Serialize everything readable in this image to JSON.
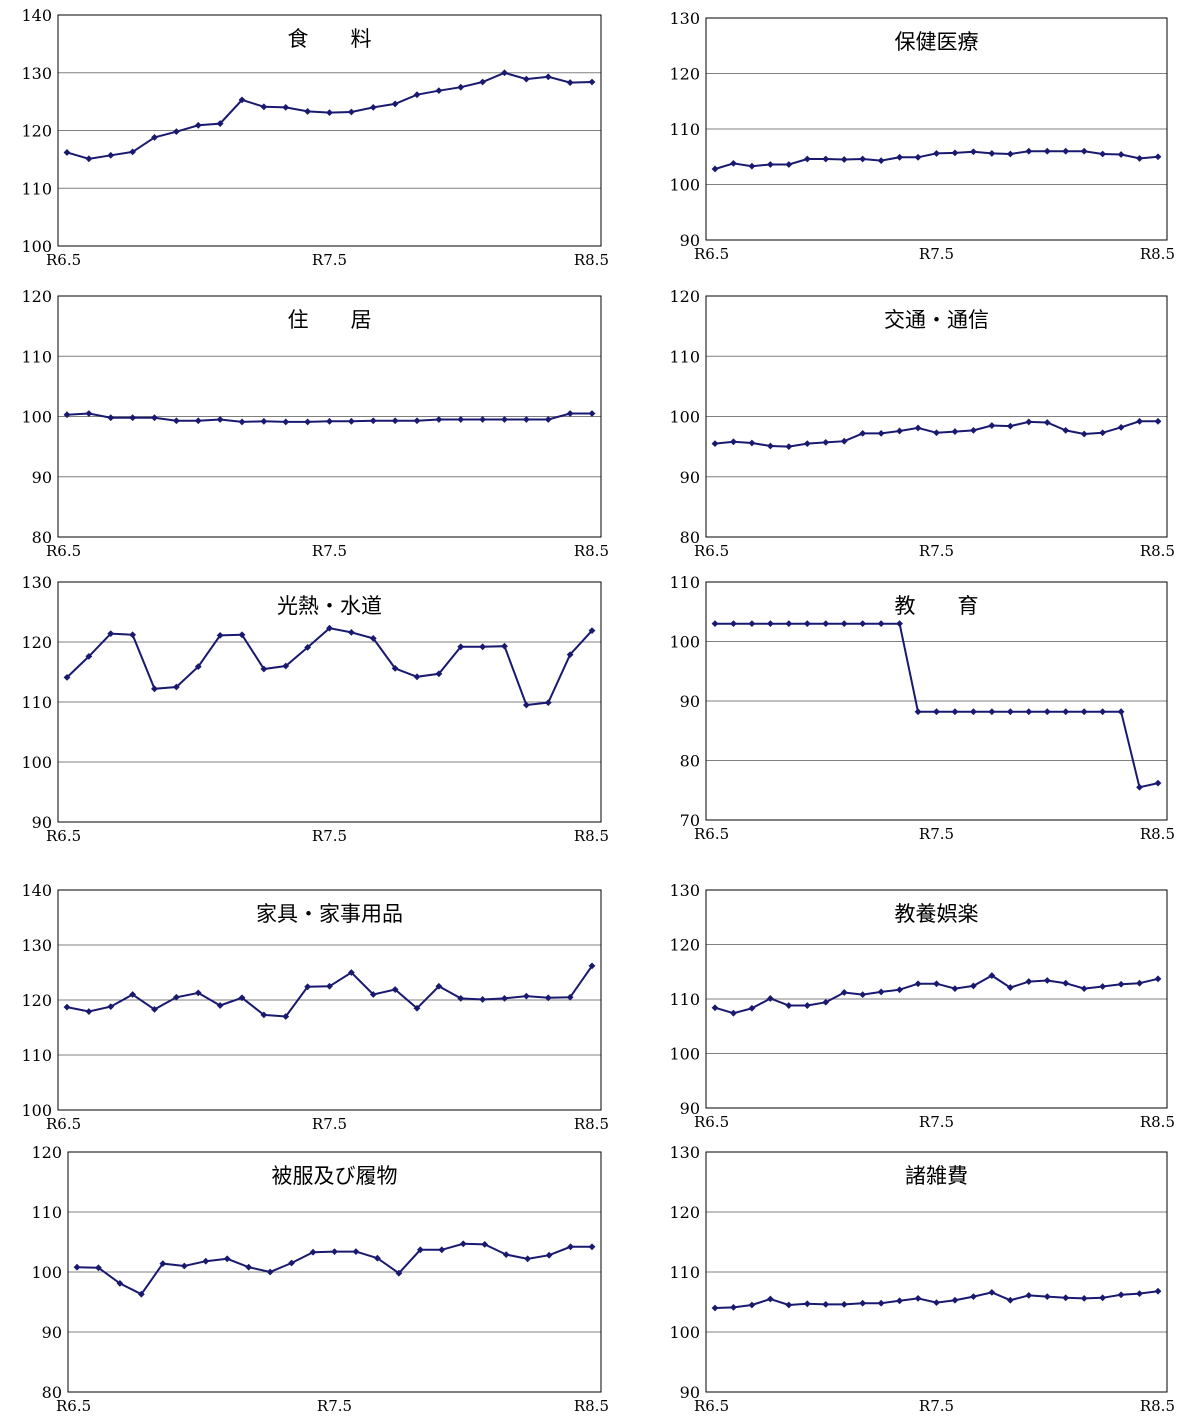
{
  "chart_data": [
    {
      "type": "line",
      "title": "食　　料",
      "ylim": [
        100,
        140
      ],
      "yticks": [
        100,
        110,
        120,
        130,
        140
      ],
      "x_labels": [
        "R6.5",
        "R7.5",
        "R8.5"
      ],
      "grid": true,
      "series": [
        {
          "values": [
            116.2,
            115.1,
            115.7,
            116.3,
            118.8,
            119.8,
            120.9,
            121.2,
            125.3,
            124.1,
            124.0,
            123.3,
            123.1,
            123.2,
            124.0,
            124.6,
            126.2,
            126.9,
            127.5,
            128.4,
            130.0,
            128.9,
            129.3,
            128.3,
            128.4
          ]
        }
      ]
    },
    {
      "type": "line",
      "title": "保健医療",
      "ylim": [
        90,
        130
      ],
      "yticks": [
        90,
        100,
        110,
        120,
        130
      ],
      "x_labels": [
        "R6.5",
        "R7.5",
        "R8.5"
      ],
      "grid": true,
      "series": [
        {
          "values": [
            102.8,
            103.8,
            103.3,
            103.6,
            103.6,
            104.6,
            104.6,
            104.5,
            104.6,
            104.3,
            104.9,
            104.9,
            105.6,
            105.7,
            105.9,
            105.6,
            105.5,
            106.0,
            106.0,
            106.0,
            106.0,
            105.5,
            105.4,
            104.7,
            105.0
          ]
        }
      ]
    },
    {
      "type": "line",
      "title": "住　　居",
      "ylim": [
        80,
        120
      ],
      "yticks": [
        80,
        90,
        100,
        110,
        120
      ],
      "x_labels": [
        "R6.5",
        "R7.5",
        "R8.5"
      ],
      "grid": true,
      "series": [
        {
          "values": [
            100.3,
            100.5,
            99.8,
            99.8,
            99.8,
            99.3,
            99.3,
            99.5,
            99.1,
            99.2,
            99.1,
            99.1,
            99.2,
            99.2,
            99.3,
            99.3,
            99.3,
            99.5,
            99.5,
            99.5,
            99.5,
            99.5,
            99.5,
            100.5,
            100.5
          ]
        }
      ]
    },
    {
      "type": "line",
      "title": "交通・通信",
      "ylim": [
        80,
        120
      ],
      "yticks": [
        80,
        90,
        100,
        110,
        120
      ],
      "x_labels": [
        "R6.5",
        "R7.5",
        "R8.5"
      ],
      "grid": true,
      "series": [
        {
          "values": [
            95.5,
            95.8,
            95.6,
            95.1,
            95.0,
            95.5,
            95.7,
            95.9,
            97.2,
            97.2,
            97.6,
            98.1,
            97.3,
            97.5,
            97.7,
            98.5,
            98.4,
            99.1,
            99.0,
            97.7,
            97.1,
            97.3,
            98.2,
            99.2,
            99.2
          ]
        }
      ]
    },
    {
      "type": "line",
      "title": "光熱・水道",
      "ylim": [
        90,
        130
      ],
      "yticks": [
        90,
        100,
        110,
        120,
        130
      ],
      "x_labels": [
        "R6.5",
        "R7.5",
        "R8.5"
      ],
      "grid": true,
      "series": [
        {
          "values": [
            114.1,
            117.6,
            121.4,
            121.2,
            112.2,
            112.5,
            115.9,
            121.1,
            121.2,
            115.5,
            116.0,
            119.1,
            122.3,
            121.6,
            120.6,
            115.6,
            114.2,
            114.7,
            119.2,
            119.2,
            119.3,
            109.5,
            109.9,
            117.9,
            121.9
          ]
        }
      ]
    },
    {
      "type": "line",
      "title": "教　　育",
      "ylim": [
        70,
        110
      ],
      "yticks": [
        70,
        80,
        90,
        100,
        110
      ],
      "x_labels": [
        "R6.5",
        "R7.5",
        "R8.5"
      ],
      "grid": true,
      "series": [
        {
          "values": [
            103.0,
            103.0,
            103.0,
            103.0,
            103.0,
            103.0,
            103.0,
            103.0,
            103.0,
            103.0,
            103.0,
            88.2,
            88.2,
            88.2,
            88.2,
            88.2,
            88.2,
            88.2,
            88.2,
            88.2,
            88.2,
            88.2,
            88.2,
            75.5,
            76.2
          ]
        }
      ]
    },
    {
      "type": "line",
      "title": "家具・家事用品",
      "ylim": [
        100,
        140
      ],
      "yticks": [
        100,
        110,
        120,
        130,
        140
      ],
      "x_labels": [
        "R6.5",
        "R7.5",
        "R8.5"
      ],
      "grid": true,
      "series": [
        {
          "values": [
            118.7,
            117.9,
            118.8,
            121.0,
            118.3,
            120.5,
            121.3,
            119.0,
            120.4,
            117.3,
            117.0,
            122.4,
            122.5,
            125.0,
            121.0,
            121.9,
            118.5,
            122.5,
            120.3,
            120.1,
            120.3,
            120.7,
            120.4,
            120.5,
            126.2
          ]
        }
      ]
    },
    {
      "type": "line",
      "title": "教養娯楽",
      "ylim": [
        90,
        130
      ],
      "yticks": [
        90,
        100,
        110,
        120,
        130
      ],
      "x_labels": [
        "R6.5",
        "R7.5",
        "R8.5"
      ],
      "grid": true,
      "series": [
        {
          "values": [
            108.4,
            107.4,
            108.3,
            110.1,
            108.8,
            108.8,
            109.4,
            111.2,
            110.8,
            111.3,
            111.7,
            112.8,
            112.8,
            111.9,
            112.4,
            114.3,
            112.1,
            113.2,
            113.4,
            112.9,
            111.9,
            112.3,
            112.7,
            112.9,
            113.7
          ]
        }
      ]
    },
    {
      "type": "line",
      "title": "被服及び履物",
      "ylim": [
        80,
        120
      ],
      "yticks": [
        80,
        90,
        100,
        110,
        120
      ],
      "x_labels": [
        "R6.5",
        "R7.5",
        "R8.5"
      ],
      "grid": true,
      "series": [
        {
          "values": [
            100.8,
            100.7,
            98.1,
            96.3,
            101.4,
            101.0,
            101.8,
            102.2,
            100.8,
            100.0,
            101.5,
            103.3,
            103.4,
            103.4,
            102.3,
            99.8,
            103.7,
            103.7,
            104.7,
            104.6,
            102.9,
            102.2,
            102.8,
            104.2,
            104.2
          ]
        }
      ]
    },
    {
      "type": "line",
      "title": "諸雑費",
      "ylim": [
        90,
        130
      ],
      "yticks": [
        90,
        100,
        110,
        120,
        130
      ],
      "x_labels": [
        "R6.5",
        "R7.5",
        "R8.5"
      ],
      "grid": true,
      "series": [
        {
          "values": [
            104.0,
            104.1,
            104.5,
            105.5,
            104.5,
            104.7,
            104.6,
            104.6,
            104.8,
            104.8,
            105.2,
            105.6,
            104.9,
            105.3,
            105.9,
            106.6,
            105.3,
            106.1,
            105.9,
            105.7,
            105.6,
            105.7,
            106.2,
            106.4,
            106.8
          ]
        }
      ]
    }
  ],
  "style": {
    "line_color": "#191970",
    "grid_color": "#808080",
    "frame_color": "#000000"
  }
}
